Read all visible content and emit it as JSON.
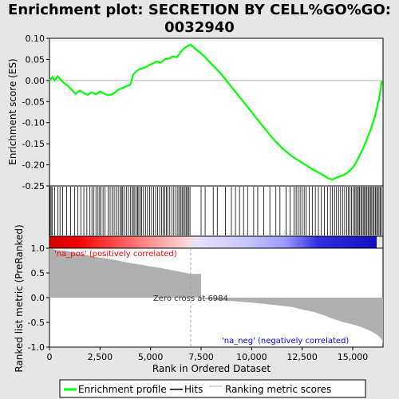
{
  "chart_data": {
    "type": "line",
    "title_line1": "Enrichment plot: SECRETION BY CELL%GO%GO:",
    "title_line2": "0032940",
    "panels": {
      "enrichment": {
        "ylabel": "Enrichment score (ES)",
        "ylim": [
          -0.25,
          0.1
        ],
        "yticks": [
          -0.25,
          -0.2,
          -0.15,
          -0.1,
          -0.05,
          0.0,
          0.05,
          0.1
        ],
        "ytick_labels": [
          "-0.25",
          "-0.20",
          "-0.15",
          "-0.10",
          "-0.05",
          "0.00",
          "0.05",
          "0.10"
        ],
        "series": {
          "name": "Enrichment profile",
          "color": "#00ff00",
          "x": [
            0,
            150,
            250,
            400,
            500,
            700,
            900,
            1100,
            1300,
            1500,
            1700,
            1900,
            2100,
            2300,
            2500,
            2700,
            2900,
            3100,
            3250,
            3400,
            3600,
            3800,
            4000,
            4150,
            4300,
            4500,
            4700,
            4900,
            5100,
            5300,
            5500,
            5700,
            5900,
            6100,
            6300,
            6500,
            6700,
            6850,
            6984,
            7200,
            7600,
            8000,
            8500,
            9000,
            9500,
            10000,
            10500,
            11000,
            11500,
            12000,
            12500,
            13000,
            13300,
            13600,
            13800,
            14000,
            14200,
            14500,
            14700,
            14900,
            15100,
            15300,
            15500,
            15700,
            15900,
            16100,
            16300,
            16450
          ],
          "y": [
            0.0,
            0.008,
            0.0,
            0.01,
            0.005,
            -0.005,
            -0.012,
            -0.022,
            -0.032,
            -0.024,
            -0.03,
            -0.034,
            -0.028,
            -0.033,
            -0.026,
            -0.031,
            -0.035,
            -0.033,
            -0.028,
            -0.022,
            -0.018,
            -0.014,
            -0.01,
            0.015,
            0.022,
            0.028,
            0.03,
            0.036,
            0.04,
            0.045,
            0.042,
            0.05,
            0.052,
            0.057,
            0.055,
            0.068,
            0.078,
            0.082,
            0.085,
            0.076,
            0.06,
            0.04,
            0.015,
            -0.015,
            -0.045,
            -0.075,
            -0.105,
            -0.135,
            -0.16,
            -0.18,
            -0.195,
            -0.21,
            -0.218,
            -0.226,
            -0.232,
            -0.235,
            -0.23,
            -0.225,
            -0.22,
            -0.212,
            -0.2,
            -0.182,
            -0.162,
            -0.14,
            -0.115,
            -0.085,
            -0.045,
            0.0
          ]
        }
      },
      "hits": {
        "legend": "Hits",
        "positions": [
          30,
          80,
          130,
          250,
          420,
          520,
          650,
          850,
          1050,
          1250,
          1400,
          1550,
          1700,
          1850,
          2000,
          2100,
          2200,
          2300,
          2400,
          2480,
          2550,
          2650,
          2750,
          2900,
          3000,
          3100,
          3200,
          3300,
          3400,
          3500,
          3560,
          3620,
          3700,
          3800,
          3900,
          4000,
          4080,
          4150,
          4220,
          4300,
          4360,
          4420,
          4500,
          4560,
          4650,
          4750,
          4850,
          4950,
          5050,
          5150,
          5250,
          5350,
          5450,
          5550,
          5620,
          5700,
          5780,
          5850,
          5950,
          6050,
          6150,
          6250,
          6350,
          6420,
          6500,
          6560,
          6620,
          6700,
          6760,
          6820,
          6880,
          6950,
          7500,
          7700,
          8100,
          8300,
          8700,
          9000,
          9200,
          9400,
          9600,
          9800,
          10100,
          10300,
          10600,
          10900,
          11200,
          11400,
          11700,
          11900,
          12100,
          12200,
          12300,
          12400,
          12500,
          12600,
          12700,
          12850,
          13000,
          13150,
          13300,
          13450,
          13600,
          13750,
          13900,
          14000,
          14100,
          14200,
          14300,
          14400,
          14500,
          14600,
          14700,
          14780,
          14860,
          14940,
          15020,
          15100,
          15160,
          15220,
          15280,
          15340,
          15400,
          15460,
          15520,
          15580,
          15640,
          15700,
          15760,
          15820,
          15880,
          15940,
          16000,
          16060,
          16120,
          16180,
          16240,
          16300,
          16360,
          16420
        ]
      },
      "ranking": {
        "ylabel": "Ranked list metric (PreRanked)",
        "xlabel": "Rank in Ordered Dataset",
        "legend": "Ranking metric scores",
        "ylim": [
          -1.0,
          1.0
        ],
        "yticks": [
          -1.0,
          -0.5,
          0.0,
          0.5,
          1.0
        ],
        "ytick_labels": [
          "-1.0",
          "-0.5",
          "0.0",
          "0.5",
          "1.0"
        ],
        "xlim": [
          0,
          16500
        ],
        "xticks": [
          0,
          2500,
          5000,
          7500,
          10000,
          12500,
          15000
        ],
        "xtick_labels": [
          "0",
          "2,500",
          "5,000",
          "7,500",
          "10,000",
          "12,500",
          "15,000"
        ],
        "x": [
          0,
          200,
          400,
          700,
          1000,
          1300,
          1700,
          2100,
          2500,
          3000,
          3500,
          4000,
          4500,
          5000,
          5500,
          6000,
          6500,
          6984,
          7500,
          8000,
          9000,
          10000,
          11000,
          12000,
          12500,
          13000,
          13300,
          13600,
          13900,
          14200,
          14500,
          15000,
          15400,
          15700,
          16000,
          16200,
          16350,
          16450,
          16499
        ],
        "values": [
          1.0,
          0.98,
          0.96,
          0.95,
          0.93,
          0.9,
          0.87,
          0.84,
          0.81,
          0.78,
          0.74,
          0.7,
          0.67,
          0.63,
          0.6,
          0.56,
          0.52,
          0.48,
          -0.02,
          -0.04,
          -0.07,
          -0.1,
          -0.14,
          -0.19,
          -0.24,
          -0.28,
          -0.32,
          -0.36,
          -0.41,
          -0.45,
          -0.49,
          -0.54,
          -0.59,
          -0.64,
          -0.7,
          -0.75,
          -0.8,
          -0.86,
          -0.92
        ],
        "zero_cross_label": "Zero cross at 6984",
        "zero_cross": 6984,
        "pos_label": "'na_pos' (positively correlated)",
        "neg_label": "'na_neg' (negatively correlated)",
        "pos_color": "#ff0000",
        "neg_color": "#0000ff",
        "bar_color": "#b0b0b0"
      }
    },
    "legend": [
      "Enrichment profile",
      "Hits",
      "Ranking metric scores"
    ],
    "legend_placement": "bottom"
  }
}
